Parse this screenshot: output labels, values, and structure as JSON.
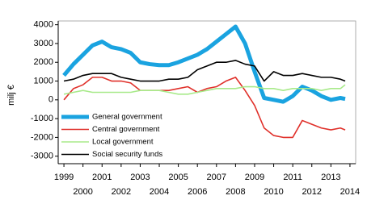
{
  "chart_data": {
    "type": "line",
    "y_label": "milj €",
    "x": [
      1999,
      1999.5,
      2000,
      2000.5,
      2001,
      2001.5,
      2002,
      2002.5,
      2003,
      2003.5,
      2004,
      2004.5,
      2005,
      2005.5,
      2006,
      2006.5,
      2007,
      2007.5,
      2008,
      2008.5,
      2009,
      2009.5,
      2010,
      2010.5,
      2011,
      2011.5,
      2012,
      2012.5,
      2013,
      2013.5,
      2013.75
    ],
    "series": [
      {
        "name": "General government",
        "color": "#1aa3e0",
        "width": 5,
        "values": [
          1300,
          1900,
          2400,
          2900,
          3100,
          2800,
          2700,
          2500,
          2000,
          1900,
          1850,
          1850,
          2000,
          2200,
          2400,
          2700,
          3100,
          3500,
          3900,
          3000,
          1500,
          100,
          0,
          -100,
          200,
          700,
          500,
          200,
          0,
          100,
          50
        ]
      },
      {
        "name": "Central government",
        "color": "#e0302a",
        "width": 1.6,
        "values": [
          0,
          600,
          800,
          1200,
          1200,
          1000,
          1000,
          900,
          500,
          500,
          500,
          500,
          600,
          700,
          400,
          600,
          700,
          1000,
          1200,
          500,
          -300,
          -1500,
          -1900,
          -2000,
          -2000,
          -1100,
          -1300,
          -1500,
          -1600,
          -1500,
          -1600
        ]
      },
      {
        "name": "Local government",
        "color": "#a8ea8a",
        "width": 1.6,
        "values": [
          300,
          400,
          500,
          400,
          400,
          400,
          400,
          400,
          500,
          500,
          500,
          400,
          300,
          300,
          400,
          500,
          600,
          600,
          600,
          700,
          700,
          600,
          600,
          500,
          600,
          600,
          600,
          500,
          600,
          600,
          800
        ]
      },
      {
        "name": "Social security funds",
        "color": "#000000",
        "width": 1.6,
        "values": [
          1000,
          1100,
          1300,
          1400,
          1400,
          1400,
          1200,
          1100,
          1000,
          1000,
          1000,
          1100,
          1100,
          1200,
          1600,
          1800,
          2000,
          2000,
          2100,
          1900,
          1800,
          1000,
          1500,
          1300,
          1300,
          1400,
          1300,
          1200,
          1200,
          1100,
          1000
        ]
      }
    ],
    "xlim": [
      1998.7,
      2014.3
    ],
    "xticks": [
      1999,
      2000,
      2001,
      2002,
      2003,
      2004,
      2005,
      2006,
      2007,
      2008,
      2009,
      2010,
      2011,
      2012,
      2013,
      2014
    ],
    "ylim": [
      -3400,
      4200
    ],
    "yticks": [
      -3000,
      -2000,
      -1000,
      0,
      1000,
      2000,
      3000,
      4000
    ],
    "grid": false
  }
}
